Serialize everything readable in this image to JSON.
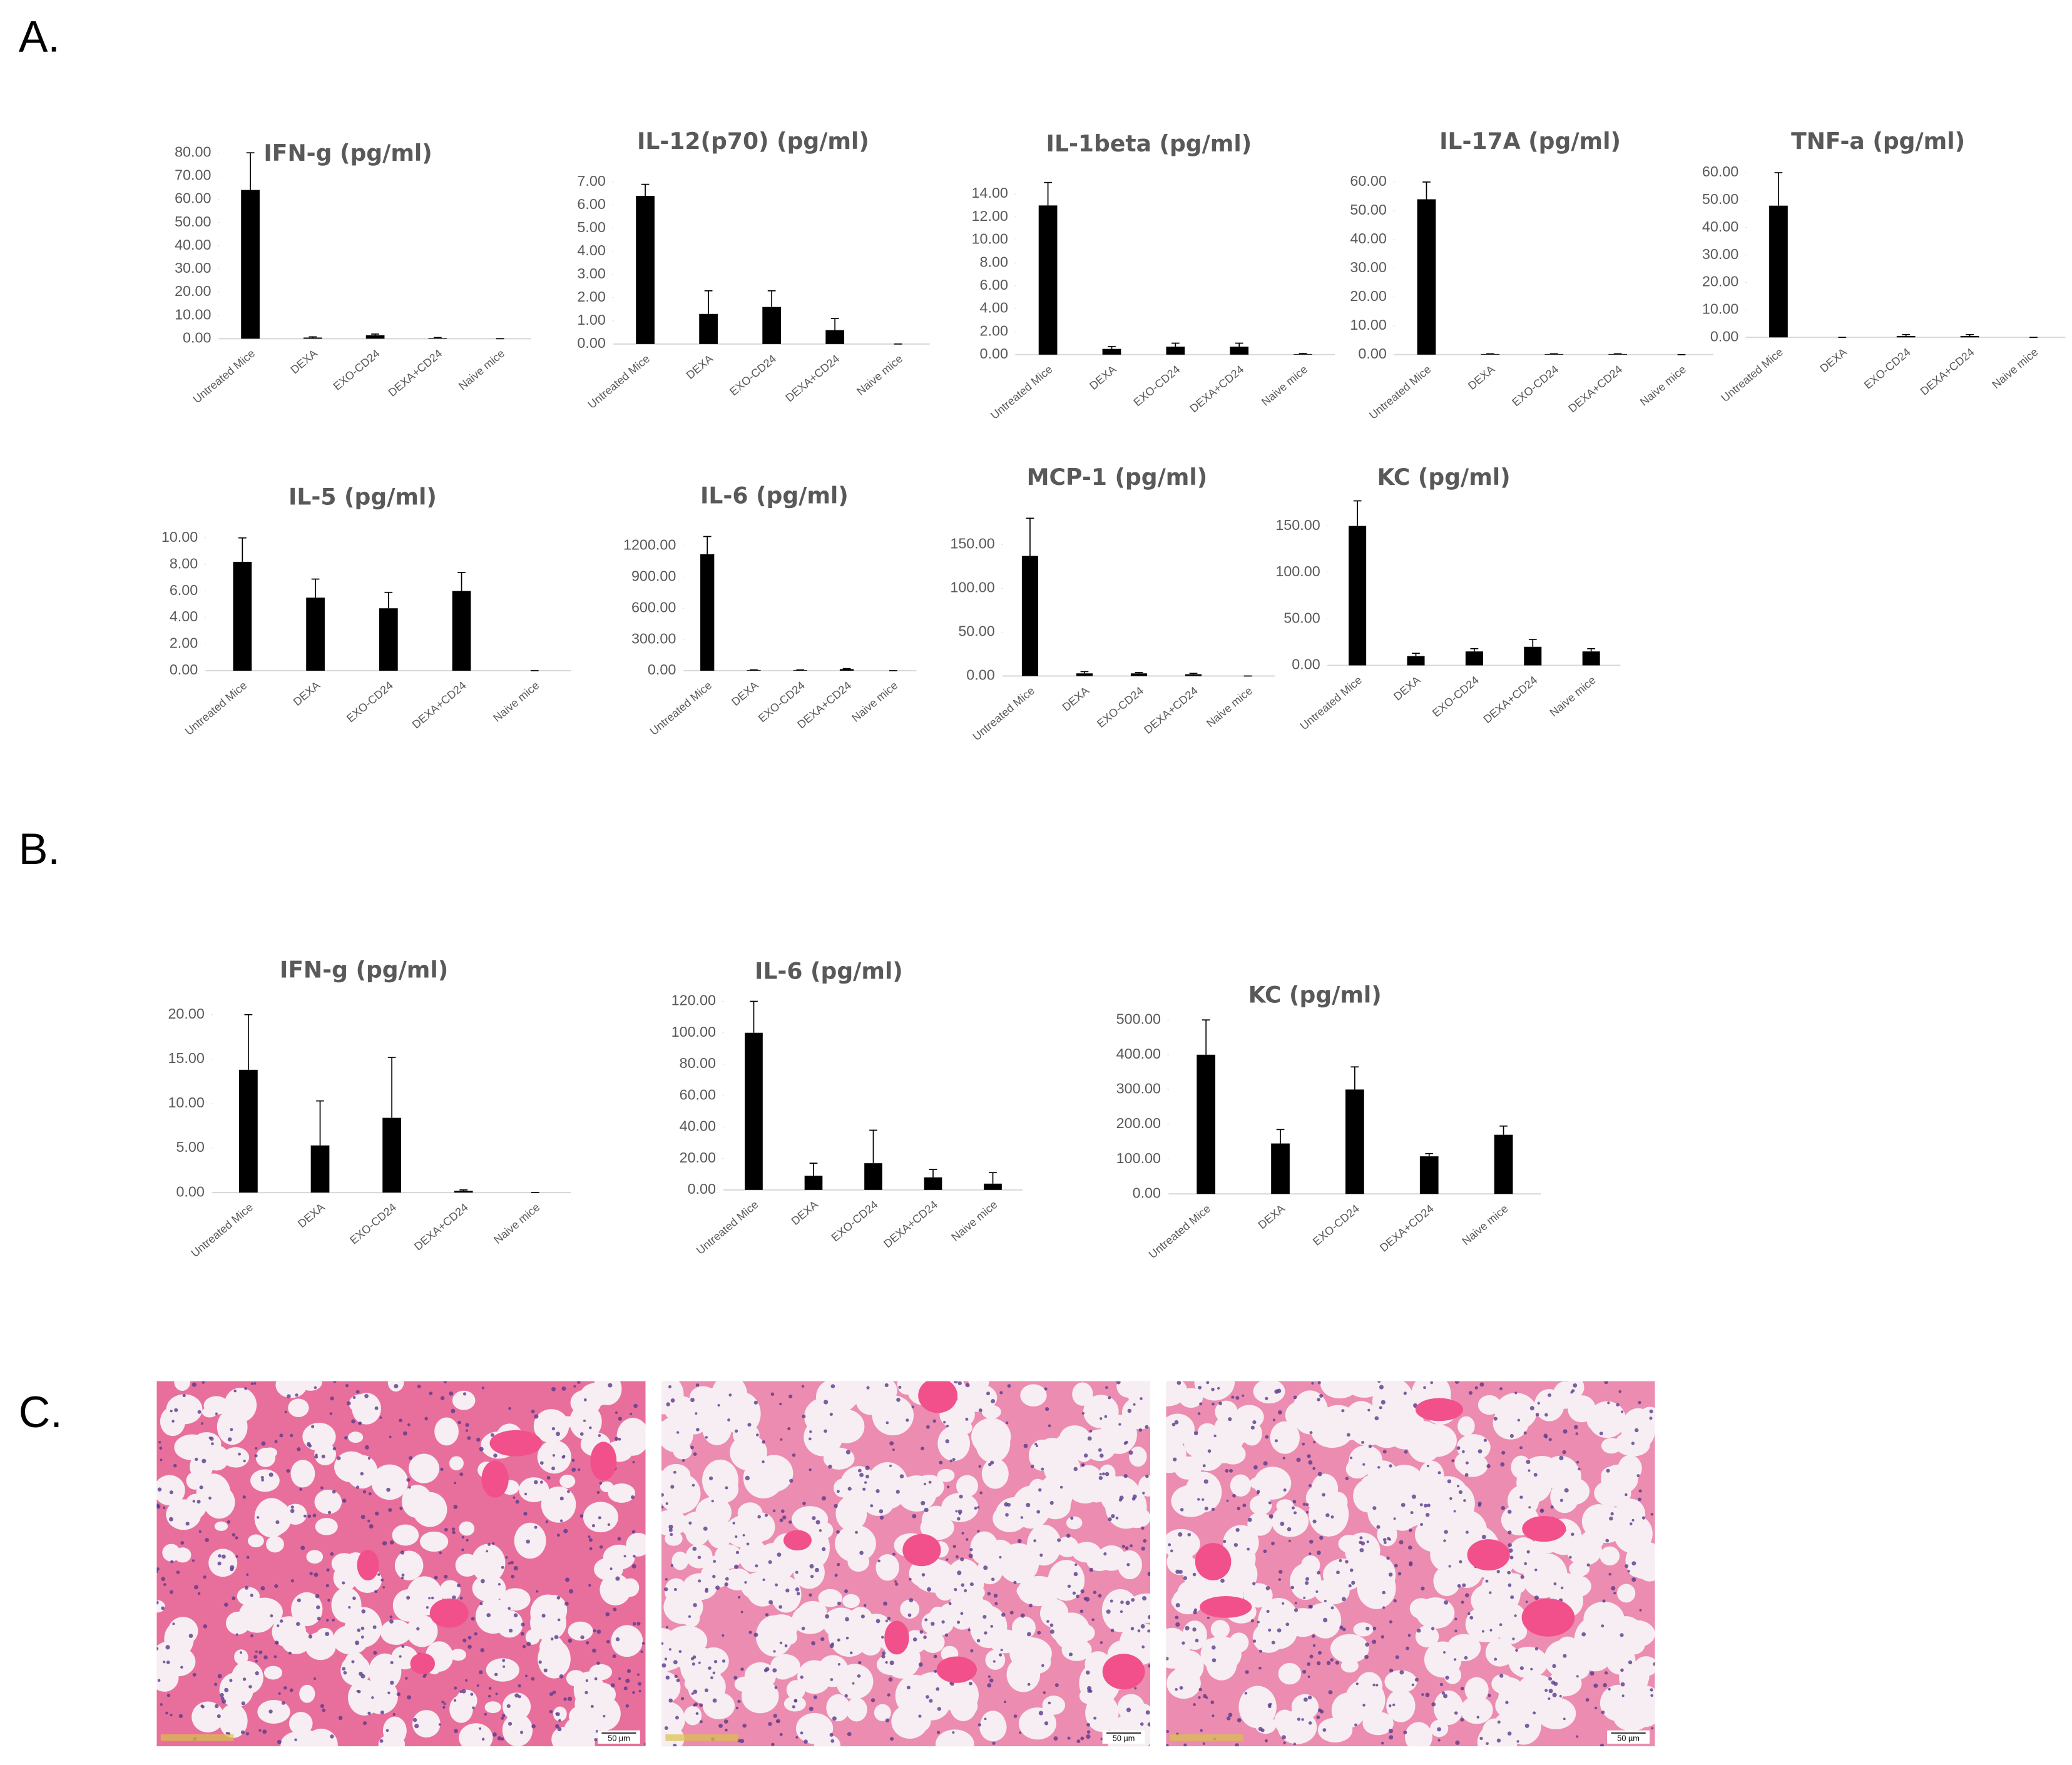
{
  "panels": [
    "A.",
    "B.",
    "C."
  ],
  "panel_c": {
    "scale_bars": [
      "50 µm",
      "50 µm",
      "50 µm"
    ]
  },
  "chart_data": [
    {
      "type": "bar",
      "title": "IFN-g (pg/ml)",
      "color": "#000000",
      "categories": [
        "Untreated Mice",
        "DEXA",
        "EXO-CD24",
        "DEXA+CD24",
        "Naive mice"
      ],
      "values": [
        64,
        0.5,
        1.5,
        0.3,
        0
      ],
      "errors": [
        16,
        0.3,
        0.5,
        0.2,
        0
      ],
      "ylim": [
        0,
        80
      ],
      "yticks": [
        {
          "value": 0,
          "label": "0.00"
        },
        {
          "value": 10,
          "label": "10.00"
        },
        {
          "value": 20,
          "label": "20.00"
        },
        {
          "value": 30,
          "label": "30.00"
        },
        {
          "value": 40,
          "label": "40.00"
        },
        {
          "value": 50,
          "label": "50.00"
        },
        {
          "value": 60,
          "label": "60.00"
        },
        {
          "value": 70,
          "label": "70.00"
        },
        {
          "value": 80,
          "label": "80.00"
        }
      ]
    },
    {
      "type": "bar",
      "title": "IL-12(p70)  (pg/ml)",
      "color": "#000000",
      "categories": [
        "Untreated Mice",
        "DEXA",
        "EXO-CD24",
        "DEXA+CD24",
        "Naive mice"
      ],
      "values": [
        6.4,
        1.3,
        1.6,
        0.6,
        0
      ],
      "errors": [
        0.5,
        1.0,
        0.7,
        0.5,
        0
      ],
      "ylim": [
        0,
        7
      ],
      "yticks": [
        {
          "value": 0,
          "label": "0.00"
        },
        {
          "value": 1,
          "label": "1.00"
        },
        {
          "value": 2,
          "label": "2.00"
        },
        {
          "value": 3,
          "label": "3.00"
        },
        {
          "value": 4,
          "label": "4.00"
        },
        {
          "value": 5,
          "label": "5.00"
        },
        {
          "value": 6,
          "label": "6.00"
        },
        {
          "value": 7,
          "label": "7.00"
        }
      ]
    },
    {
      "type": "bar",
      "title": "IL-1beta (pg/ml)",
      "color": "#000000",
      "categories": [
        "Untreated Mice",
        "DEXA",
        "EXO-CD24",
        "DEXA+CD24",
        "Naive mice"
      ],
      "values": [
        13,
        0.5,
        0.7,
        0.7,
        0.05
      ],
      "errors": [
        2,
        0.2,
        0.3,
        0.3,
        0.05
      ],
      "ylim": [
        0,
        14
      ],
      "yticks": [
        {
          "value": 0,
          "label": "0.00"
        },
        {
          "value": 2,
          "label": "2.00"
        },
        {
          "value": 4,
          "label": "4.00"
        },
        {
          "value": 6,
          "label": "6.00"
        },
        {
          "value": 8,
          "label": "8.00"
        },
        {
          "value": 10,
          "label": "10.00"
        },
        {
          "value": 12,
          "label": "12.00"
        },
        {
          "value": 14,
          "label": "14.00"
        }
      ]
    },
    {
      "type": "bar",
      "title": "IL-17A  (pg/ml)",
      "color": "#000000",
      "categories": [
        "Untreated Mice",
        "DEXA",
        "EXO-CD24",
        "DEXA+CD24",
        "Naive mice"
      ],
      "values": [
        54,
        0.2,
        0.2,
        0.2,
        0
      ],
      "errors": [
        6,
        0.1,
        0.1,
        0.1,
        0
      ],
      "ylim": [
        0,
        60
      ],
      "yticks": [
        {
          "value": 0,
          "label": "0.00"
        },
        {
          "value": 10,
          "label": "10.00"
        },
        {
          "value": 20,
          "label": "20.00"
        },
        {
          "value": 30,
          "label": "30.00"
        },
        {
          "value": 40,
          "label": "40.00"
        },
        {
          "value": 50,
          "label": "50.00"
        },
        {
          "value": 60,
          "label": "60.00"
        }
      ]
    },
    {
      "type": "bar",
      "title": "TNF-a  (pg/ml)",
      "color": "#000000",
      "categories": [
        "Untreated Mice",
        "DEXA",
        "EXO-CD24",
        "DEXA+CD24",
        "Naive mice"
      ],
      "values": [
        48,
        0,
        0.5,
        0.5,
        0
      ],
      "errors": [
        12,
        0,
        0.5,
        0.5,
        0
      ],
      "ylim": [
        0,
        60
      ],
      "yticks": [
        {
          "value": 0,
          "label": "0.00"
        },
        {
          "value": 10,
          "label": "10.00"
        },
        {
          "value": 20,
          "label": "20.00"
        },
        {
          "value": 30,
          "label": "30.00"
        },
        {
          "value": 40,
          "label": "40.00"
        },
        {
          "value": 50,
          "label": "50.00"
        },
        {
          "value": 60,
          "label": "60.00"
        }
      ]
    },
    {
      "type": "bar",
      "title": "IL-5 (pg/ml)",
      "color": "#000000",
      "categories": [
        "Untreated Mice",
        "DEXA",
        "EXO-CD24",
        "DEXA+CD24",
        "Naive mice"
      ],
      "values": [
        8.2,
        5.5,
        4.7,
        6.0,
        0
      ],
      "errors": [
        1.8,
        1.4,
        1.2,
        1.4,
        0
      ],
      "ylim": [
        0,
        10
      ],
      "yticks": [
        {
          "value": 0,
          "label": "0.00"
        },
        {
          "value": 2,
          "label": "2.00"
        },
        {
          "value": 4,
          "label": "4.00"
        },
        {
          "value": 6,
          "label": "6.00"
        },
        {
          "value": 8,
          "label": "8.00"
        },
        {
          "value": 10,
          "label": "10.00"
        }
      ]
    },
    {
      "type": "bar",
      "title": "IL-6  (pg/ml)",
      "color": "#000000",
      "categories": [
        "Untreated Mice",
        "DEXA",
        "EXO-CD24",
        "DEXA+CD24",
        "Naive mice"
      ],
      "values": [
        1120,
        5,
        5,
        15,
        0
      ],
      "errors": [
        170,
        3,
        3,
        5,
        0
      ],
      "ylim": [
        0,
        1200
      ],
      "yticks": [
        {
          "value": 0,
          "label": "0.00"
        },
        {
          "value": 300,
          "label": "300.00"
        },
        {
          "value": 600,
          "label": "600.00"
        },
        {
          "value": 900,
          "label": "900.00"
        },
        {
          "value": 1200,
          "label": "1200.00"
        }
      ]
    },
    {
      "type": "bar",
      "title": "MCP-1  (pg/ml)",
      "color": "#000000",
      "categories": [
        "Untreated Mice",
        "DEXA",
        "EXO-CD24",
        "DEXA+CD24",
        "Naive mice"
      ],
      "values": [
        137,
        3,
        3,
        2,
        0
      ],
      "errors": [
        43,
        2,
        1,
        1,
        0
      ],
      "ylim": [
        0,
        150
      ],
      "yticks": [
        {
          "value": 0,
          "label": "0.00"
        },
        {
          "value": 50,
          "label": "50.00"
        },
        {
          "value": 100,
          "label": "100.00"
        },
        {
          "value": 150,
          "label": "150.00"
        }
      ]
    },
    {
      "type": "bar",
      "title": "KC  (pg/ml)",
      "color": "#000000",
      "categories": [
        "Untreated Mice",
        "DEXA",
        "EXO-CD24",
        "DEXA+CD24",
        "Naive mice"
      ],
      "values": [
        150,
        10,
        15,
        20,
        15
      ],
      "errors": [
        27,
        3,
        3,
        8,
        3
      ],
      "ylim": [
        0,
        150
      ],
      "yticks": [
        {
          "value": 0,
          "label": "0.00"
        },
        {
          "value": 50,
          "label": "50.00"
        },
        {
          "value": 100,
          "label": "100.00"
        },
        {
          "value": 150,
          "label": "150.00"
        }
      ]
    },
    {
      "type": "bar",
      "title": "IFN-g (pg/ml)",
      "color": "#000000",
      "categories": [
        "Untreated Mice",
        "DEXA",
        "EXO-CD24",
        "DEXA+CD24",
        "Naive mice"
      ],
      "values": [
        13.8,
        5.3,
        8.4,
        0.2,
        0
      ],
      "errors": [
        6.2,
        5,
        6.8,
        0.1,
        0
      ],
      "ylim": [
        0,
        20
      ],
      "yticks": [
        {
          "value": 0,
          "label": "0.00"
        },
        {
          "value": 5,
          "label": "5.00"
        },
        {
          "value": 10,
          "label": "10.00"
        },
        {
          "value": 15,
          "label": "15.00"
        },
        {
          "value": 20,
          "label": "20.00"
        }
      ]
    },
    {
      "type": "bar",
      "title": "IL-6  (pg/ml)",
      "color": "#000000",
      "categories": [
        "Untreated Mice",
        "DEXA",
        "EXO-CD24",
        "DEXA+CD24",
        "Naive mice"
      ],
      "values": [
        100,
        9,
        17,
        8,
        4
      ],
      "errors": [
        20,
        8,
        21,
        5,
        7
      ],
      "ylim": [
        0,
        120
      ],
      "yticks": [
        {
          "value": 0,
          "label": "0.00"
        },
        {
          "value": 20,
          "label": "20.00"
        },
        {
          "value": 40,
          "label": "40.00"
        },
        {
          "value": 60,
          "label": "60.00"
        },
        {
          "value": 80,
          "label": "80.00"
        },
        {
          "value": 100,
          "label": "100.00"
        },
        {
          "value": 120,
          "label": "120.00"
        }
      ]
    },
    {
      "type": "bar",
      "title": "KC  (pg/ml)",
      "color": "#000000",
      "categories": [
        "Untreated Mice",
        "DEXA",
        "EXO-CD24",
        "DEXA+CD24",
        "Naive mice"
      ],
      "values": [
        400,
        145,
        300,
        108,
        170
      ],
      "errors": [
        100,
        40,
        65,
        8,
        25
      ],
      "ylim": [
        0,
        500
      ],
      "yticks": [
        {
          "value": 0,
          "label": "0.00"
        },
        {
          "value": 100,
          "label": "100.00"
        },
        {
          "value": 200,
          "label": "200.00"
        },
        {
          "value": 300,
          "label": "300.00"
        },
        {
          "value": 400,
          "label": "400.00"
        },
        {
          "value": 500,
          "label": "500.00"
        }
      ]
    }
  ]
}
